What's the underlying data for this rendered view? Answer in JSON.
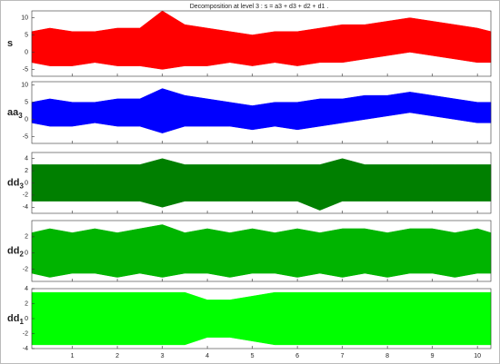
{
  "chart_data": [
    {
      "type": "range",
      "title": "Decomposition at level 3 : s = a3 + d3 + d2 + d1 .",
      "ylabel": "s",
      "color": "#ff0000",
      "x": [
        0.1,
        0.5,
        1,
        1.5,
        2,
        2.5,
        3,
        3.5,
        4,
        4.5,
        5,
        5.5,
        6,
        6.5,
        7,
        7.5,
        8,
        8.5,
        9,
        9.5,
        10,
        10.3
      ],
      "upper": [
        6,
        7,
        6,
        6,
        7,
        7,
        12,
        8,
        7,
        6,
        5,
        6,
        6,
        7,
        8,
        8,
        9,
        10,
        9,
        8,
        7,
        6
      ],
      "lower": [
        -3,
        -4,
        -4,
        -3,
        -4,
        -4,
        -5,
        -4,
        -4,
        -3,
        -4,
        -3,
        -4,
        -3,
        -3,
        -2,
        -1,
        0,
        -1,
        -2,
        -3,
        -3
      ],
      "xlim": [
        0.1,
        10.3
      ],
      "xticks": [
        1,
        2,
        3,
        4,
        5,
        6,
        7,
        8,
        9,
        10
      ],
      "ylim": [
        -7,
        12
      ],
      "yticks": [
        -5,
        0,
        5,
        10
      ]
    },
    {
      "type": "range",
      "ylabel": "a",
      "ylabel_sub": "3",
      "color": "#0000ff",
      "x": [
        0.1,
        0.5,
        1,
        1.5,
        2,
        2.5,
        3,
        3.5,
        4,
        4.5,
        5,
        5.5,
        6,
        6.5,
        7,
        7.5,
        8,
        8.5,
        9,
        9.5,
        10,
        10.3
      ],
      "upper": [
        5,
        6,
        5,
        5,
        6,
        6,
        9,
        7,
        6,
        5,
        4,
        5,
        5,
        6,
        6,
        7,
        7,
        8,
        7,
        6,
        5,
        5
      ],
      "lower": [
        -1,
        -2,
        -2,
        -1,
        -2,
        -2,
        -4,
        -2,
        -2,
        -2,
        -3,
        -2,
        -3,
        -2,
        -1,
        0,
        1,
        2,
        1,
        0,
        -1,
        -1
      ],
      "xlim": [
        0.1,
        10.3
      ],
      "xticks": [
        1,
        2,
        3,
        4,
        5,
        6,
        7,
        8,
        9,
        10
      ],
      "ylim": [
        -7,
        11
      ],
      "yticks": [
        -5,
        0,
        5,
        10
      ]
    },
    {
      "type": "range",
      "ylabel": "d",
      "ylabel_sub": "3",
      "color": "#007f00",
      "x": [
        0.1,
        0.5,
        1,
        1.5,
        2,
        2.5,
        3,
        3.5,
        4,
        4.5,
        5,
        5.5,
        6,
        6.5,
        7,
        7.5,
        8,
        8.5,
        9,
        9.5,
        10,
        10.3
      ],
      "upper": [
        3,
        3,
        3,
        3,
        3,
        3,
        4,
        3,
        3,
        3,
        3,
        3,
        3,
        3,
        4,
        3,
        3,
        3,
        3,
        3,
        3,
        3
      ],
      "lower": [
        -3,
        -3,
        -3,
        -3,
        -3,
        -3,
        -4,
        -3,
        -3,
        -3,
        -3,
        -3,
        -3,
        -4.5,
        -3,
        -3,
        -3,
        -3,
        -3,
        -3,
        -3,
        -3
      ],
      "xlim": [
        0.1,
        10.3
      ],
      "xticks": [
        1,
        2,
        3,
        4,
        5,
        6,
        7,
        8,
        9,
        10
      ],
      "ylim": [
        -5,
        5
      ],
      "yticks": [
        -4,
        -2,
        0,
        2,
        4
      ]
    },
    {
      "type": "range",
      "ylabel": "d",
      "ylabel_sub": "2",
      "color": "#00b400",
      "x": [
        0.1,
        0.5,
        1,
        1.5,
        2,
        2.5,
        3,
        3.5,
        4,
        4.5,
        5,
        5.5,
        6,
        6.5,
        7,
        7.5,
        8,
        8.5,
        9,
        9.5,
        10,
        10.3
      ],
      "upper": [
        2.5,
        3,
        2.5,
        3,
        2.5,
        3,
        3.5,
        2.5,
        3,
        2.5,
        3,
        2.5,
        3,
        2.5,
        3,
        3,
        2.5,
        3,
        3,
        2.5,
        3,
        2.5
      ],
      "lower": [
        -2.5,
        -3,
        -2.5,
        -2.5,
        -3,
        -2.5,
        -3,
        -2.5,
        -2.5,
        -3,
        -2.5,
        -2.5,
        -3,
        -2.5,
        -3,
        -2.5,
        -3,
        -2.5,
        -2.5,
        -3,
        -2.5,
        -2.5
      ],
      "xlim": [
        0.1,
        10.3
      ],
      "xticks": [
        1,
        2,
        3,
        4,
        5,
        6,
        7,
        8,
        9,
        10
      ],
      "ylim": [
        -3.5,
        4
      ],
      "yticks": [
        -2,
        0,
        2
      ]
    },
    {
      "type": "range",
      "ylabel": "d",
      "ylabel_sub": "1",
      "color": "#00ff00",
      "x": [
        0.1,
        0.5,
        1,
        1.5,
        2,
        2.5,
        3,
        3.5,
        4,
        4.5,
        5,
        5.5,
        6,
        6.5,
        7,
        7.5,
        8,
        8.5,
        9,
        9.5,
        10,
        10.3
      ],
      "upper": [
        3.5,
        3.5,
        3.5,
        3.5,
        3.5,
        3.5,
        3.5,
        3.5,
        2.5,
        2.5,
        3,
        3.5,
        3.5,
        3.5,
        3.5,
        3.5,
        3.5,
        3.5,
        3.5,
        3.5,
        3.5,
        3.5
      ],
      "lower": [
        -3.5,
        -3.5,
        -3.5,
        -3.5,
        -3.5,
        -3.5,
        -3.5,
        -3.5,
        -2.5,
        -2.5,
        -3,
        -3.5,
        -3.5,
        -3.5,
        -3.5,
        -3.5,
        -3.5,
        -3.5,
        -3.5,
        -3.5,
        -3.5,
        -3.5
      ],
      "xlim": [
        0.1,
        10.3
      ],
      "xticks": [
        1,
        2,
        3,
        4,
        5,
        6,
        7,
        8,
        9,
        10
      ],
      "ylim": [
        -4,
        4
      ],
      "yticks": [
        -4,
        -2,
        0,
        2,
        4
      ]
    }
  ]
}
